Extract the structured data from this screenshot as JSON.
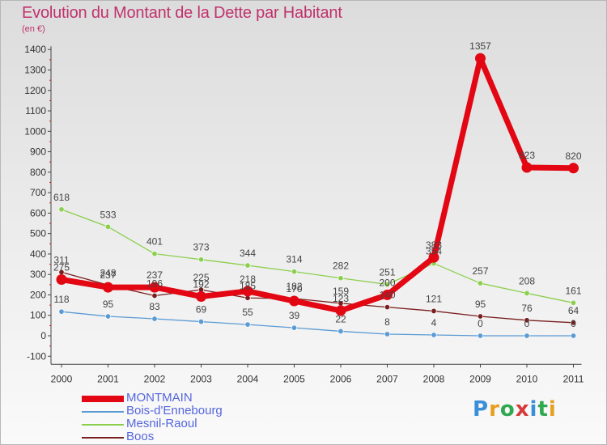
{
  "title": "Evolution du Montant de la Dette par Habitant",
  "subtitle": "(en €)",
  "logo": {
    "text": "Proxiti",
    "colors": [
      "#3a8fd8",
      "#e6a020",
      "#2fa84f",
      "#d63a3a",
      "#3a8fd8",
      "#2fa84f",
      "#e6a020"
    ]
  },
  "chart_data": {
    "type": "line",
    "x": [
      "2000",
      "2001",
      "2002",
      "2003",
      "2004",
      "2005",
      "2006",
      "2007",
      "2008",
      "2009",
      "2010",
      "2011"
    ],
    "ylim": [
      -100,
      1400
    ],
    "yticks": [
      -100,
      0,
      100,
      200,
      300,
      400,
      500,
      600,
      700,
      800,
      900,
      1000,
      1100,
      1200,
      1300,
      1400
    ],
    "grid": false,
    "legend_position": "bottom-left",
    "series": [
      {
        "name": "MONTMAIN",
        "color": "#e30613",
        "values": [
          275,
          237,
          237,
          192,
          218,
          170,
          123,
          200,
          383,
          1357,
          823,
          820
        ],
        "labels": [
          "275",
          "237",
          "237",
          "192",
          "218",
          "170",
          "123",
          "200",
          "383",
          "1357",
          "823",
          "820"
        ]
      },
      {
        "name": "Bois-d'Ennebourg",
        "color": "#5a9bd4",
        "values": [
          118,
          95,
          83,
          69,
          55,
          39,
          22,
          8,
          4,
          0,
          0,
          0
        ],
        "labels": [
          "118",
          "95",
          "83",
          "69",
          "55",
          "39",
          "22",
          "8",
          "4",
          "0",
          "0",
          "0"
        ]
      },
      {
        "name": "Mesnil-Raoul",
        "color": "#8ccf4f",
        "values": [
          618,
          533,
          401,
          373,
          344,
          314,
          282,
          251,
          354,
          257,
          208,
          161
        ],
        "labels": [
          "618",
          "533",
          "401",
          "373",
          "344",
          "314",
          "282",
          "251",
          "354",
          "257",
          "208",
          "161"
        ]
      },
      {
        "name": "Boos",
        "color": "#7a1f1f",
        "values": [
          311,
          248,
          196,
          225,
          185,
          182,
          159,
          140,
          121,
          95,
          76,
          64
        ],
        "labels": [
          "311",
          "248",
          "196",
          "225",
          "185",
          "182",
          "159",
          "140",
          "121",
          "95",
          "76",
          "64"
        ]
      }
    ]
  }
}
